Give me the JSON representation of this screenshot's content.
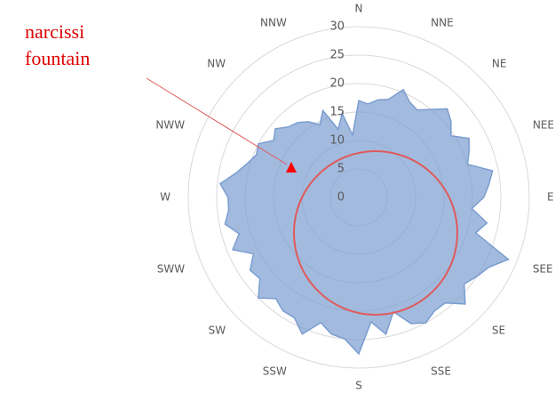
{
  "chart_data": {
    "type": "radar",
    "annotation": [
      "narcissi",
      "fountain"
    ],
    "categories": [
      "N",
      null,
      null,
      null,
      "NNE",
      null,
      null,
      null,
      "NE",
      null,
      null,
      null,
      "NEE",
      null,
      null,
      null,
      "E",
      null,
      null,
      null,
      "SEE",
      null,
      null,
      null,
      "SE",
      null,
      null,
      null,
      "SSE",
      null,
      null,
      null,
      "S",
      null,
      null,
      null,
      "SSW",
      null,
      null,
      null,
      "SW",
      null,
      null,
      null,
      "SWW",
      null,
      null,
      null,
      "W",
      null,
      null,
      null,
      "NWW",
      null,
      null,
      null,
      "NW",
      null,
      null,
      null,
      "NNW",
      null,
      null,
      null
    ],
    "series": [
      {
        "color": "#7a9dd0",
        "values": [
          17,
          16.5,
          17.5,
          18,
          20.5,
          19,
          18.5,
          20,
          22,
          21,
          19.5,
          22,
          21,
          20,
          24,
          23,
          22,
          20,
          23,
          21.5,
          28.5,
          26,
          25,
          24,
          26.5,
          24,
          24,
          25,
          24,
          21,
          24.5,
          22,
          27.5,
          25,
          24.5,
          23,
          26,
          24,
          24,
          23,
          25,
          22.5,
          23,
          21,
          24,
          22,
          24,
          23,
          23,
          24.5,
          22,
          20.5,
          19.5,
          20,
          18,
          19,
          17.5,
          17,
          16,
          14.5,
          16.5,
          12.5,
          15,
          11
        ]
      }
    ],
    "rlim": [
      0,
      30
    ],
    "rticks": [
      0,
      5,
      10,
      15,
      20,
      25,
      30
    ]
  }
}
